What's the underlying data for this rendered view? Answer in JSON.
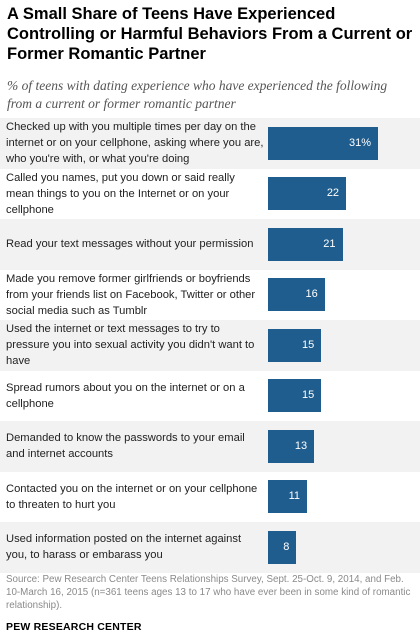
{
  "title": "A Small Share of Teens Have Experienced Controlling or Harmful Behaviors From a Current or Former Romantic Partner",
  "subtitle": "% of teens with dating experience who have experienced the following from a current or former romantic partner",
  "chart_data": {
    "type": "bar",
    "orientation": "horizontal",
    "categories": [
      "Checked up with you multiple times per day on the internet or on your cellphone, asking where you are, who you're with, or what you're doing",
      "Called you names, put you down or said really mean things to you on the Internet or on your cellphone",
      "Read your text messages without your permission",
      "Made you remove former girlfriends or boyfriends from your friends list on Facebook, Twitter or other social media such as Tumblr",
      "Used the internet or text messages to try to pressure you into sexual activity you didn't want to have",
      "Spread rumors about you on the internet or on a cellphone",
      "Demanded to know the passwords to your email and internet accounts",
      "Contacted you on the internet or on your cellphone to threaten to hurt you",
      "Used information posted on the internet against you, to harass or embarass you"
    ],
    "values": [
      31,
      22,
      21,
      16,
      15,
      15,
      13,
      11,
      8
    ],
    "value_labels": [
      "31%",
      "22",
      "21",
      "16",
      "15",
      "15",
      "13",
      "11",
      "8"
    ],
    "xlim": [
      0,
      31
    ],
    "bar_color": "#1f5d8e",
    "grid": false
  },
  "source": "Source: Pew Research Center Teens Relationships Survey, Sept. 25-Oct. 9, 2014, and Feb. 10-March 16, 2015 (n=361 teens ages 13 to 17 who have ever been in some kind of romantic relationship).",
  "brand": "PEW RESEARCH CENTER"
}
